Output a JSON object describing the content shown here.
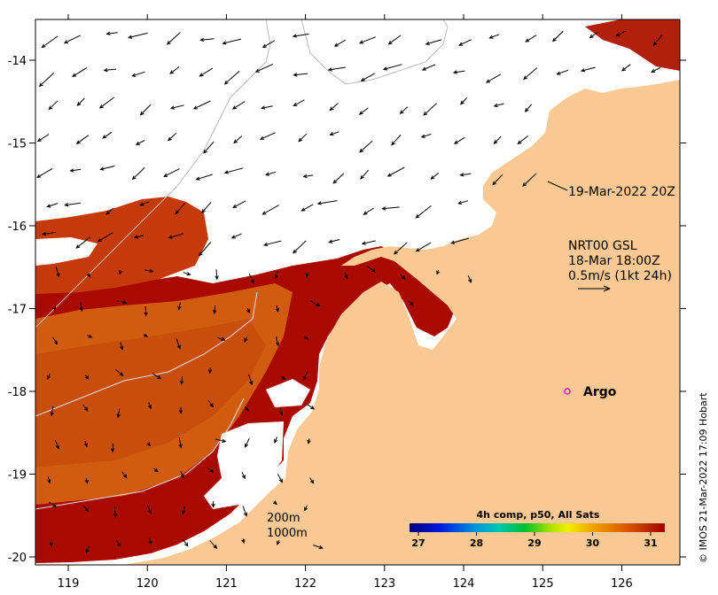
{
  "map": {
    "x_ticks": [
      "119",
      "120",
      "121",
      "122",
      "123",
      "124",
      "125",
      "126"
    ],
    "y_ticks": [
      "-14",
      "-15",
      "-16",
      "-17",
      "-18",
      "-19",
      "-20"
    ],
    "colors": {
      "land": "#fcc894",
      "water_white": "#ffffff",
      "sst_dark": "#a80a00",
      "sst_mid": "#c43a08",
      "sst_orange": "#d86a10"
    },
    "contours": {
      "line1": "200m",
      "line2": "1000m"
    },
    "timestamp_label": "19-Mar-2022 20Z",
    "current_info": {
      "line1": "NRT00 GSL",
      "line2": "18-Mar 18:00Z",
      "line3": "0.5m/s (1kt 24h)"
    },
    "argo_label": "Argo",
    "argo_color": "#e000e0",
    "colorbar": {
      "title": "4h comp, p50, All Sats",
      "ticks": [
        "27",
        "28",
        "29",
        "30",
        "31"
      ]
    },
    "credit": "© IMOS 21-Mar-2022 17:09 Hobart"
  }
}
